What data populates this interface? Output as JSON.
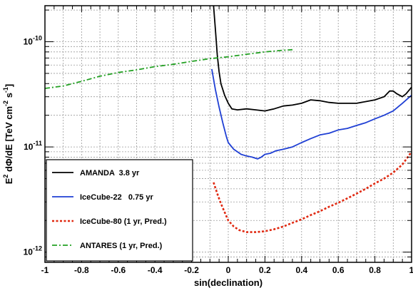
{
  "chart_data": {
    "type": "line",
    "xlabel": "sin(declination)",
    "ylabel_parts": {
      "base": "E",
      "sup1": "2",
      "mid": " dΦ/dE [TeV cm",
      "sup2": "-2",
      "mid2": " s",
      "sup3": "-1",
      "end": "]"
    },
    "xlim": [
      -1,
      1
    ],
    "ylim": [
      8e-13,
      2.2e-10
    ],
    "yscale": "log",
    "grid": true,
    "x_ticks": [
      -1,
      -0.8,
      -0.6,
      -0.4,
      -0.2,
      0,
      0.2,
      0.4,
      0.6,
      0.8,
      1
    ],
    "x_tick_labels": [
      "-1",
      "-0.8",
      "-0.6",
      "-0.4",
      "-0.2",
      "0",
      "0.2",
      "0.4",
      "0.6",
      "0.8",
      "1"
    ],
    "y_major_ticks": [
      {
        "value": 1e-12,
        "base": "10",
        "exp": "-12"
      },
      {
        "value": 1e-11,
        "base": "10",
        "exp": "-11"
      },
      {
        "value": 1e-10,
        "base": "10",
        "exp": "-10"
      }
    ],
    "legend_position": "bottom-left",
    "series": [
      {
        "name": "AMANDA  3.8 yr",
        "color": "#000000",
        "style": "solid",
        "points": [
          [
            -0.08,
            2.2e-10
          ],
          [
            -0.07,
            1.3e-10
          ],
          [
            -0.06,
            7.5e-11
          ],
          [
            -0.05,
            5.2e-11
          ],
          [
            -0.04,
            4e-11
          ],
          [
            -0.02,
            3.1e-11
          ],
          [
            0.0,
            2.6e-11
          ],
          [
            0.02,
            2.3e-11
          ],
          [
            0.05,
            2.25e-11
          ],
          [
            0.1,
            2.3e-11
          ],
          [
            0.15,
            2.25e-11
          ],
          [
            0.2,
            2.2e-11
          ],
          [
            0.25,
            2.3e-11
          ],
          [
            0.3,
            2.45e-11
          ],
          [
            0.35,
            2.5e-11
          ],
          [
            0.4,
            2.6e-11
          ],
          [
            0.45,
            2.8e-11
          ],
          [
            0.5,
            2.75e-11
          ],
          [
            0.55,
            2.65e-11
          ],
          [
            0.6,
            2.6e-11
          ],
          [
            0.65,
            2.6e-11
          ],
          [
            0.7,
            2.6e-11
          ],
          [
            0.75,
            2.7e-11
          ],
          [
            0.8,
            2.8e-11
          ],
          [
            0.85,
            3e-11
          ],
          [
            0.88,
            3.4e-11
          ],
          [
            0.9,
            3.4e-11
          ],
          [
            0.92,
            3.2e-11
          ],
          [
            0.95,
            3e-11
          ],
          [
            0.97,
            3.2e-11
          ],
          [
            1.0,
            3.7e-11
          ]
        ]
      },
      {
        "name": "IceCube-22   0.75 yr",
        "color": "#1f3fd4",
        "style": "solid",
        "points": [
          [
            -0.09,
            5.5e-11
          ],
          [
            -0.07,
            3.5e-11
          ],
          [
            -0.05,
            2.4e-11
          ],
          [
            -0.03,
            1.7e-11
          ],
          [
            -0.01,
            1.25e-11
          ],
          [
            0.0,
            1.1e-11
          ],
          [
            0.03,
            9.5e-12
          ],
          [
            0.07,
            8.5e-12
          ],
          [
            0.1,
            8.2e-12
          ],
          [
            0.13,
            8e-12
          ],
          [
            0.16,
            7.7e-12
          ],
          [
            0.18,
            8e-12
          ],
          [
            0.2,
            8.5e-12
          ],
          [
            0.23,
            8.7e-12
          ],
          [
            0.26,
            9.2e-12
          ],
          [
            0.3,
            9.5e-12
          ],
          [
            0.35,
            1e-11
          ],
          [
            0.4,
            1.1e-11
          ],
          [
            0.45,
            1.2e-11
          ],
          [
            0.5,
            1.3e-11
          ],
          [
            0.55,
            1.35e-11
          ],
          [
            0.6,
            1.45e-11
          ],
          [
            0.65,
            1.5e-11
          ],
          [
            0.7,
            1.6e-11
          ],
          [
            0.75,
            1.7e-11
          ],
          [
            0.8,
            1.85e-11
          ],
          [
            0.85,
            2e-11
          ],
          [
            0.9,
            2.2e-11
          ],
          [
            0.95,
            2.6e-11
          ],
          [
            1.0,
            3.1e-11
          ]
        ]
      },
      {
        "name": "IceCube-80 (1 yr, Pred.)",
        "color": "#e02810",
        "style": "dotted",
        "points": [
          [
            -0.08,
            4.6e-12
          ],
          [
            -0.06,
            3.6e-12
          ],
          [
            -0.04,
            2.9e-12
          ],
          [
            -0.02,
            2.4e-12
          ],
          [
            0.0,
            2e-12
          ],
          [
            0.03,
            1.75e-12
          ],
          [
            0.06,
            1.62e-12
          ],
          [
            0.1,
            1.55e-12
          ],
          [
            0.15,
            1.55e-12
          ],
          [
            0.2,
            1.58e-12
          ],
          [
            0.25,
            1.65e-12
          ],
          [
            0.3,
            1.75e-12
          ],
          [
            0.35,
            1.9e-12
          ],
          [
            0.4,
            2.05e-12
          ],
          [
            0.45,
            2.25e-12
          ],
          [
            0.5,
            2.45e-12
          ],
          [
            0.55,
            2.7e-12
          ],
          [
            0.6,
            2.95e-12
          ],
          [
            0.65,
            3.25e-12
          ],
          [
            0.7,
            3.6e-12
          ],
          [
            0.75,
            4e-12
          ],
          [
            0.8,
            4.5e-12
          ],
          [
            0.85,
            5e-12
          ],
          [
            0.9,
            5.7e-12
          ],
          [
            0.95,
            6.8e-12
          ],
          [
            1.0,
            9e-12
          ]
        ]
      },
      {
        "name": "ANTARES (1 yr, Pred.)",
        "color": "#22a022",
        "style": "dashdot",
        "points": [
          [
            -1.0,
            3.6e-11
          ],
          [
            -0.9,
            3.8e-11
          ],
          [
            -0.8,
            4.2e-11
          ],
          [
            -0.7,
            4.7e-11
          ],
          [
            -0.6,
            5.1e-11
          ],
          [
            -0.5,
            5.4e-11
          ],
          [
            -0.4,
            5.8e-11
          ],
          [
            -0.3,
            6.1e-11
          ],
          [
            -0.2,
            6.5e-11
          ],
          [
            -0.1,
            6.9e-11
          ],
          [
            0.0,
            7.2e-11
          ],
          [
            0.1,
            7.6e-11
          ],
          [
            0.2,
            8e-11
          ],
          [
            0.3,
            8.3e-11
          ],
          [
            0.35,
            8.4e-11
          ]
        ]
      }
    ]
  }
}
